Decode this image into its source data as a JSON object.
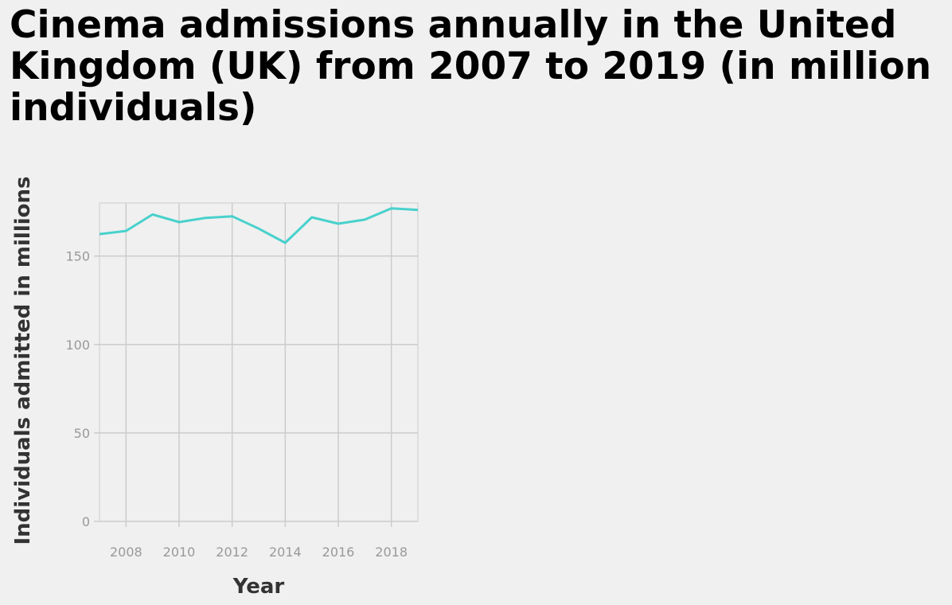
{
  "chart_data": {
    "type": "line",
    "title": "Cinema admissions annually in the United Kingdom (UK) from 2007 to 2019 (in million individuals)",
    "xlabel": "Year",
    "ylabel": "Individuals admitted in millions",
    "x": [
      2007,
      2008,
      2009,
      2010,
      2011,
      2012,
      2013,
      2014,
      2015,
      2016,
      2017,
      2018,
      2019
    ],
    "series": [
      {
        "values": [
          162.4,
          164.2,
          173.5,
          169.2,
          171.6,
          172.5,
          165.5,
          157.5,
          171.9,
          168.3,
          170.6,
          177.0,
          176.1
        ]
      }
    ],
    "xlim": [
      2007,
      2019
    ],
    "ylim": [
      0,
      180
    ],
    "xticks": [
      2008,
      2010,
      2012,
      2014,
      2016,
      2018
    ],
    "yticks": [
      0,
      50,
      100,
      150
    ],
    "grid": true,
    "legend": "none",
    "line_color": "#48d1cc",
    "grid_color": "#cccccc"
  }
}
